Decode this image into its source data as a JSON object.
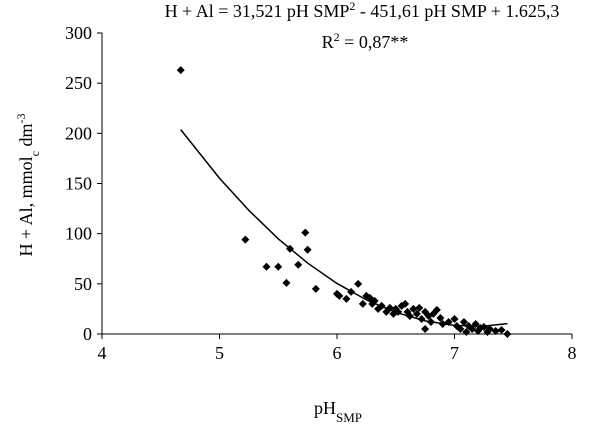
{
  "chart_data": {
    "type": "scatter",
    "equation": [
      "H + Al = 31,521 pH SMP",
      "2",
      " - 451,61 pH SMP + 1.625,3"
    ],
    "r_squared": [
      "R",
      "2",
      " = 0,87**"
    ],
    "y_label": [
      "H + Al, mmol",
      "c",
      " dm",
      "-3"
    ],
    "x_label": [
      "pH",
      "SMP"
    ],
    "xlim": [
      4,
      8
    ],
    "xticks": [
      4,
      5,
      6,
      7,
      8
    ],
    "ylim": [
      0,
      300
    ],
    "yticks": [
      0,
      50,
      100,
      150,
      200,
      250,
      300
    ],
    "color": "#000000",
    "x": [
      4.67,
      5.22,
      5.4,
      5.5,
      5.57,
      5.6,
      5.67,
      5.73,
      5.75,
      5.82,
      6.0,
      6.02,
      6.08,
      6.12,
      6.18,
      6.22,
      6.25,
      6.28,
      6.3,
      6.32,
      6.35,
      6.38,
      6.42,
      6.45,
      6.48,
      6.5,
      6.52,
      6.55,
      6.58,
      6.6,
      6.62,
      6.65,
      6.68,
      6.7,
      6.72,
      6.75,
      6.75,
      6.78,
      6.8,
      6.82,
      6.85,
      6.88,
      6.9,
      6.95,
      7.0,
      7.02,
      7.05,
      7.08,
      7.1,
      7.12,
      7.15,
      7.18,
      7.2,
      7.22,
      7.25,
      7.28,
      7.3,
      7.35,
      7.4,
      7.45
    ],
    "values": [
      263,
      94,
      67,
      67,
      51,
      85,
      69,
      101,
      84,
      45,
      40,
      38,
      35,
      42,
      50,
      30,
      38,
      36,
      30,
      33,
      25,
      28,
      22,
      26,
      20,
      25,
      22,
      28,
      30,
      22,
      18,
      25,
      20,
      26,
      15,
      22,
      5,
      18,
      12,
      20,
      24,
      16,
      10,
      12,
      15,
      8,
      5,
      12,
      2,
      8,
      5,
      10,
      3,
      6,
      7,
      2,
      5,
      3,
      4,
      0
    ],
    "fit": {
      "x": [
        4.67,
        5.0,
        5.25,
        5.5,
        5.75,
        6.0,
        6.25,
        6.5,
        6.75,
        7.0,
        7.25,
        7.45
      ],
      "y": [
        203.7,
        155.25,
        123.2,
        94.9,
        70.7,
        50.4,
        34.0,
        21.6,
        13.1,
        8.56,
        7.9,
        10.3
      ]
    }
  }
}
